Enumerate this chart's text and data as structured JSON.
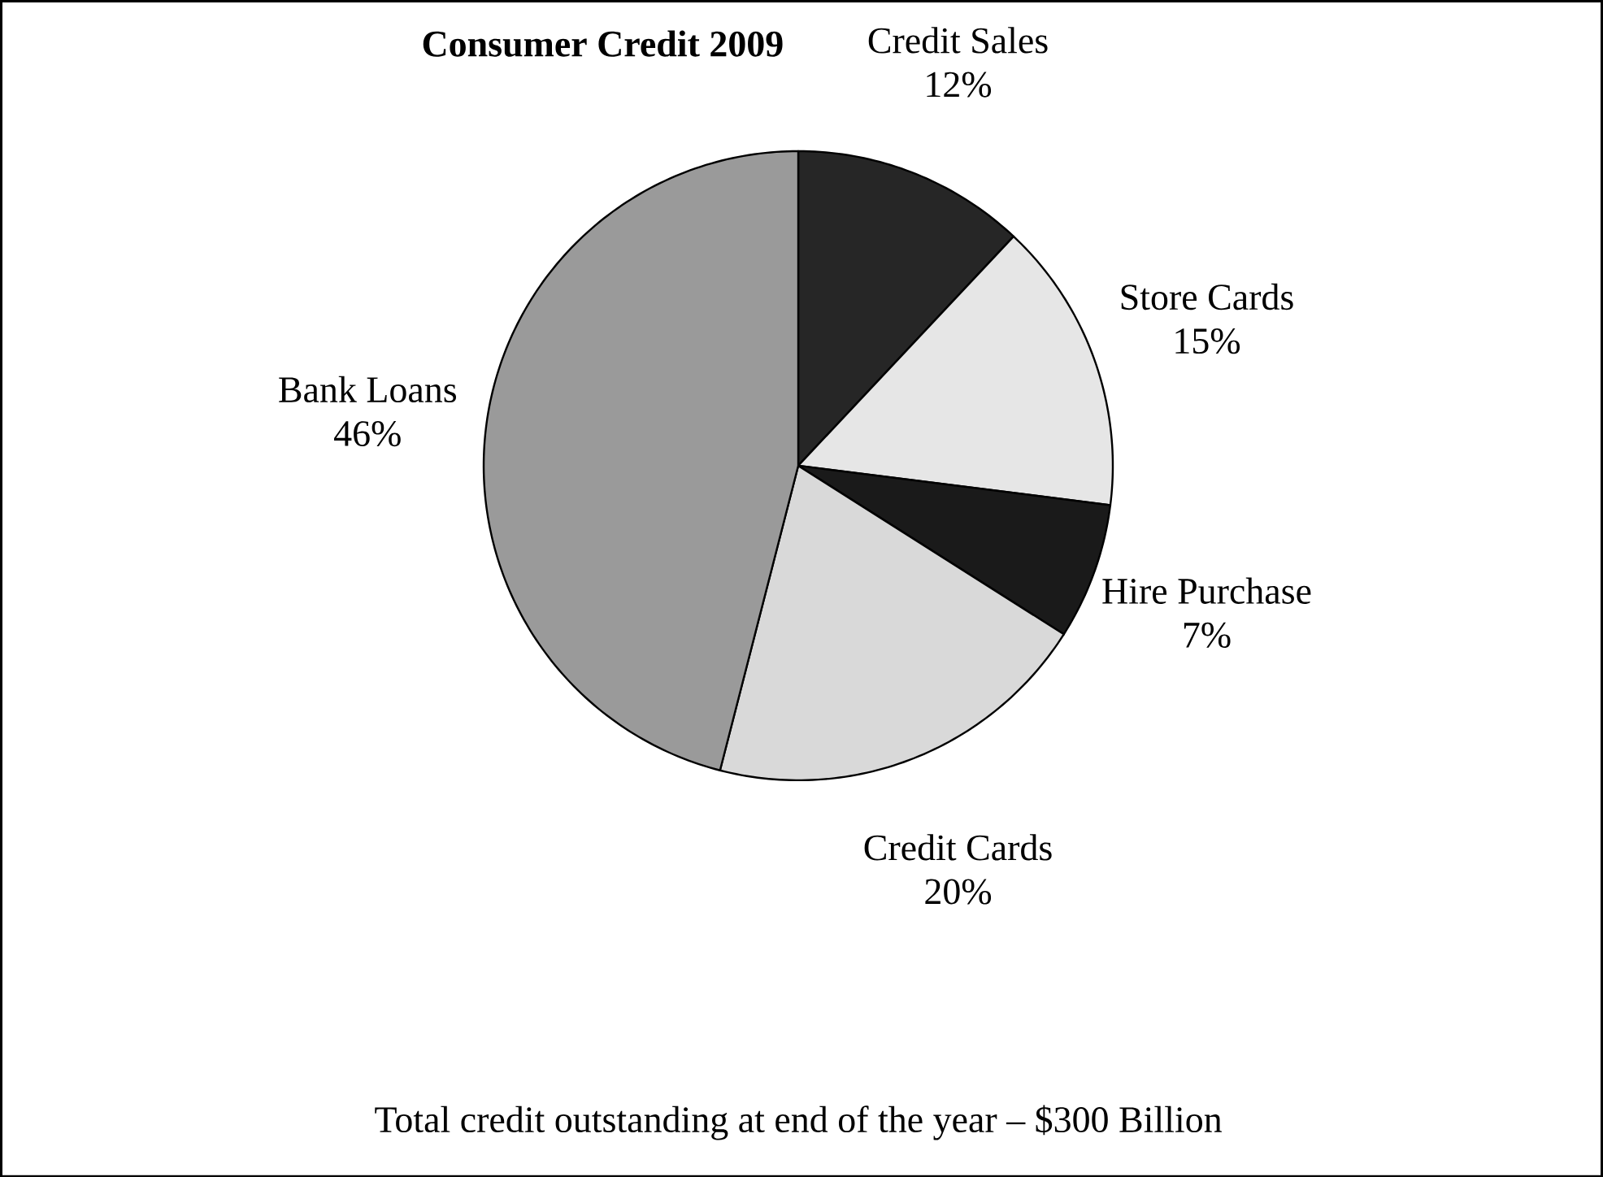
{
  "chart_data": {
    "type": "pie",
    "title": "Consumer Credit 2009",
    "categories": [
      "Credit Sales",
      "Store Cards",
      "Hire Purchase",
      "Credit Cards",
      "Bank Loans"
    ],
    "values": [
      12,
      15,
      7,
      20,
      46
    ],
    "value_labels": [
      "12%",
      "15%",
      "7%",
      "20%",
      "46%"
    ],
    "colors": [
      "#262626",
      "#e6e6e6",
      "#1a1a1a",
      "#d9d9d9",
      "#9a9a9a"
    ],
    "annotations": [
      "Total credit outstanding at end of the year – $300 Billion"
    ]
  }
}
